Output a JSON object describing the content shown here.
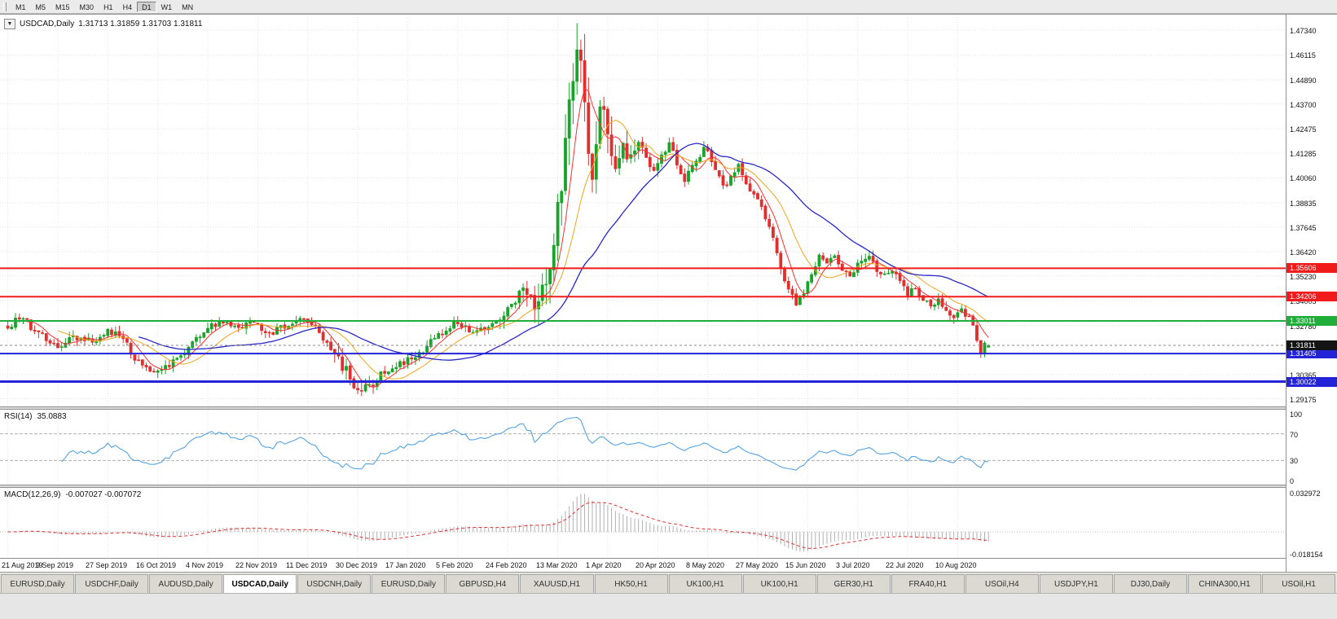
{
  "toolbar": {
    "timeframes": [
      "M1",
      "M5",
      "M15",
      "M30",
      "H1",
      "H4",
      "D1",
      "W1",
      "MN"
    ],
    "active": "D1"
  },
  "chart_title": {
    "symbol": "USDCAD,Daily",
    "quote": "1.31713 1.31859 1.31703 1.31811"
  },
  "chart_data": {
    "type": "candlestick",
    "symbol": "USDCAD",
    "timeframe": "Daily",
    "ohlc_last": {
      "open": 1.31713,
      "high": 1.31859,
      "low": 1.31703,
      "close": 1.31811
    },
    "current_price": {
      "value": 1.31811,
      "label": "1.31811",
      "color": "#141414"
    },
    "x_labels": [
      "21 Aug 2019",
      "9 Sep 2019",
      "27 Sep 2019",
      "16 Oct 2019",
      "4 Nov 2019",
      "22 Nov 2019",
      "11 Dec 2019",
      "30 Dec 2019",
      "17 Jan 2020",
      "5 Feb 2020",
      "24 Feb 2020",
      "13 Mar 2020",
      "1 Apr 2020",
      "20 Apr 2020",
      "8 May 2020",
      "27 May 2020",
      "15 Jun 2020",
      "3 Jul 2020",
      "22 Jul 2020",
      "10 Aug 2020"
    ],
    "candles_per_label": 13,
    "num_candles": 256,
    "y_axis_labels": [
      "1.47340",
      "1.46115",
      "1.44890",
      "1.43700",
      "1.42475",
      "1.41285",
      "1.40060",
      "1.38835",
      "1.37645",
      "1.36420",
      "1.35230",
      "1.34005",
      "1.32780",
      "1.30365",
      "1.29175"
    ],
    "y_top": 1.477,
    "y_bottom": 1.29,
    "levels": [
      {
        "price": 1.35606,
        "label": "1.35606",
        "color": "#f21b1b",
        "line_width": 2
      },
      {
        "price": 1.34206,
        "label": "1.34206",
        "color": "#f21b1b",
        "line_width": 2
      },
      {
        "price": 1.33011,
        "label": "1.33011",
        "color": "#1fae3a",
        "line_width": 2
      },
      {
        "price": 1.31405,
        "label": "1.31405",
        "color": "#2323d8",
        "line_width": 2
      },
      {
        "price": 1.30022,
        "label": "1.30022",
        "color": "#2323d8",
        "line_width": 3
      }
    ],
    "moving_averages": [
      {
        "period": 6,
        "color": "#ff2d2d",
        "width": 1
      },
      {
        "period": 14,
        "color": "#efa61a",
        "width": 1
      },
      {
        "period": 35,
        "color": "#2828c8",
        "width": 1.3
      }
    ],
    "price_anchors": [
      [
        0,
        1.3265
      ],
      [
        3,
        1.3325
      ],
      [
        7,
        1.3258
      ],
      [
        10,
        1.321
      ],
      [
        13,
        1.3165
      ],
      [
        17,
        1.3228
      ],
      [
        21,
        1.32
      ],
      [
        26,
        1.3245
      ],
      [
        30,
        1.3218
      ],
      [
        33,
        1.312
      ],
      [
        36,
        1.3058
      ],
      [
        39,
        1.3045
      ],
      [
        43,
        1.3095
      ],
      [
        47,
        1.3175
      ],
      [
        51,
        1.326
      ],
      [
        56,
        1.3298
      ],
      [
        60,
        1.327
      ],
      [
        64,
        1.3298
      ],
      [
        68,
        1.324
      ],
      [
        72,
        1.328
      ],
      [
        76,
        1.3305
      ],
      [
        80,
        1.327
      ],
      [
        84,
        1.3175
      ],
      [
        87,
        1.3085
      ],
      [
        90,
        1.2975
      ],
      [
        92,
        1.2958
      ],
      [
        95,
        1.3005
      ],
      [
        99,
        1.3065
      ],
      [
        103,
        1.3095
      ],
      [
        107,
        1.314
      ],
      [
        111,
        1.3215
      ],
      [
        114,
        1.3258
      ],
      [
        117,
        1.329
      ],
      [
        120,
        1.3252
      ],
      [
        124,
        1.328
      ],
      [
        128,
        1.331
      ],
      [
        131,
        1.3365
      ],
      [
        134,
        1.3448
      ],
      [
        137,
        1.339
      ],
      [
        139,
        1.3445
      ],
      [
        141,
        1.358
      ],
      [
        143,
        1.385
      ],
      [
        145,
        1.416
      ],
      [
        147,
        1.448
      ],
      [
        148,
        1.4645
      ],
      [
        149,
        1.452
      ],
      [
        150,
        1.433
      ],
      [
        151,
        1.414
      ],
      [
        152,
        1.406
      ],
      [
        153,
        1.421
      ],
      [
        154,
        1.4345
      ],
      [
        155,
        1.4295
      ],
      [
        156,
        1.4175
      ],
      [
        157,
        1.407
      ],
      [
        158,
        1.4025
      ],
      [
        159,
        1.411
      ],
      [
        160,
        1.4165
      ],
      [
        162,
        1.4085
      ],
      [
        164,
        1.4175
      ],
      [
        166,
        1.4115
      ],
      [
        168,
        1.4035
      ],
      [
        170,
        1.4105
      ],
      [
        172,
        1.417
      ],
      [
        174,
        1.4075
      ],
      [
        176,
        1.3985
      ],
      [
        178,
        1.406
      ],
      [
        180,
        1.4125
      ],
      [
        182,
        1.4155
      ],
      [
        184,
        1.405
      ],
      [
        186,
        1.3955
      ],
      [
        188,
        1.4005
      ],
      [
        190,
        1.4075
      ],
      [
        192,
        1.3985
      ],
      [
        194,
        1.3925
      ],
      [
        196,
        1.3855
      ],
      [
        198,
        1.3755
      ],
      [
        200,
        1.3635
      ],
      [
        202,
        1.3495
      ],
      [
        204,
        1.3415
      ],
      [
        205,
        1.3375
      ],
      [
        207,
        1.3445
      ],
      [
        209,
        1.3535
      ],
      [
        211,
        1.3625
      ],
      [
        213,
        1.3575
      ],
      [
        215,
        1.363
      ],
      [
        217,
        1.3555
      ],
      [
        219,
        1.3515
      ],
      [
        221,
        1.357
      ],
      [
        224,
        1.3608
      ],
      [
        227,
        1.3528
      ],
      [
        230,
        1.3558
      ],
      [
        232,
        1.3488
      ],
      [
        234,
        1.3428
      ],
      [
        236,
        1.3468
      ],
      [
        238,
        1.3415
      ],
      [
        240,
        1.3368
      ],
      [
        242,
        1.3405
      ],
      [
        244,
        1.3348
      ],
      [
        246,
        1.3308
      ],
      [
        248,
        1.3345
      ],
      [
        250,
        1.3308
      ],
      [
        251,
        1.3278
      ],
      [
        252,
        1.3215
      ],
      [
        253,
        1.3148
      ],
      [
        254,
        1.3178
      ],
      [
        255,
        1.31811
      ]
    ],
    "noise_seed": 20200821,
    "colors": {
      "up": "#18a428",
      "down": "#e02f2f",
      "grid": "#e4e4e4",
      "rsi_line": "#55a3e0",
      "macd_hist": "#b0b0b0",
      "macd_signal": "#e03333",
      "bid_line": "#8a8a8a"
    },
    "indicators": {
      "rsi": {
        "label": "RSI(14)",
        "period": 14,
        "value": "35.0883",
        "levels": [
          100,
          70,
          30,
          0
        ],
        "upper": 70,
        "lower": 30
      },
      "macd": {
        "label": "MACD(12,26,9)",
        "fast": 12,
        "slow": 26,
        "signal": 9,
        "values": "-0.007027 -0.007072",
        "axis_max": "0.032972",
        "axis_min": "-0.018154"
      }
    }
  },
  "tabs": {
    "items": [
      "EURUSD,Daily",
      "USDCHF,Daily",
      "AUDUSD,Daily",
      "USDCAD,Daily",
      "USDCNH,Daily",
      "EURUSD,Daily",
      "GBPUSD,H4",
      "XAUUSD,H1",
      "HK50,H1",
      "UK100,H1",
      "UK100,H1",
      "GER30,H1",
      "FRA40,H1",
      "USOil,H4",
      "USDJPY,H1",
      "DJ30,Daily",
      "CHINA300,H1",
      "USOil,H1"
    ],
    "active_index": 3
  }
}
